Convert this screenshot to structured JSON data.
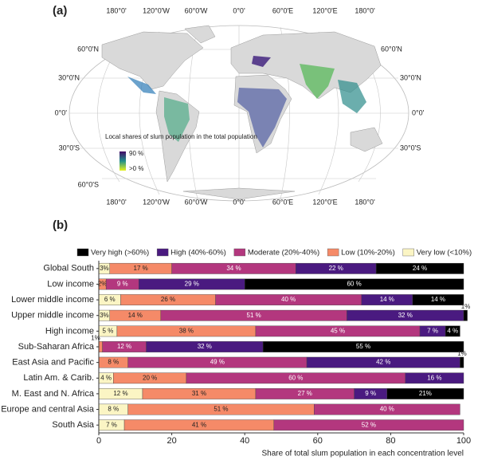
{
  "map": {
    "panel_label": "(a)",
    "top_labels": [
      "180°0'",
      "120°0'W",
      "60°0'W",
      "0°0'",
      "60°0'E",
      "120°0'E",
      "180°0'"
    ],
    "bottom_labels": [
      "180°0'",
      "120°0'W",
      "60°0'W",
      "0°0'",
      "60°0'E",
      "120°0'E",
      "180°0'"
    ],
    "left_labels": [
      "60°0'N",
      "30°0'N",
      "0°0'",
      "30°0'S",
      "60°0'S"
    ],
    "right_labels": [
      "60°0'N",
      "30°0'N",
      "0°0'",
      "30°0'S"
    ],
    "legend_title": "Local shares of slum population in the total population",
    "legend_max": "90 %",
    "legend_min": ">0 %"
  },
  "chart_data": {
    "type": "bar",
    "orientation": "horizontal",
    "stacked": true,
    "panel_label": "(b)",
    "x_label": "Share of total slum population in each concentration level",
    "categories": [
      "Global South",
      "Low income",
      "Lower middle income",
      "Upper middle income",
      "High income",
      "Sub-Saharan Africa",
      "East Asia and Pacific",
      "Latin Am. & Carib.",
      "M. East and N. Africa",
      "Europe and central Asia",
      "South Asia"
    ],
    "series": [
      {
        "name": "Very low (<10%)",
        "color": "#fbf5c4",
        "values": [
          3,
          0,
          6,
          3,
          5,
          0,
          0,
          4,
          12,
          8,
          7
        ],
        "value_labels": [
          "3%",
          null,
          "6 %",
          "3%",
          "5 %",
          null,
          null,
          "4 %",
          "12 %",
          "8 %",
          "7 %"
        ]
      },
      {
        "name": "Low (10%-20%)",
        "color": "#f58a68",
        "values": [
          17,
          2,
          26,
          14,
          38,
          1,
          8,
          20,
          31,
          51,
          41
        ],
        "value_labels": [
          "17 %",
          "2%",
          "26 %",
          "14 %",
          "38 %",
          "1%",
          "8 %",
          "20 %",
          "31 %",
          "51 %",
          "41 %"
        ]
      },
      {
        "name": "Moderate (20%-40%)",
        "color": "#b3377e",
        "values": [
          34,
          9,
          40,
          51,
          45,
          12,
          49,
          60,
          27,
          40,
          52
        ],
        "value_labels": [
          "34 %",
          "9 %",
          "40 %",
          "51 %",
          "45 %",
          "12 %",
          "49 %",
          "60 %",
          "27 %",
          "40 %",
          "52 %"
        ]
      },
      {
        "name": "High (40%-60%)",
        "color": "#4a1a80",
        "values": [
          22,
          29,
          14,
          32,
          7,
          32,
          42,
          16,
          9,
          0,
          0
        ],
        "value_labels": [
          "22 %",
          "29 %",
          "14 %",
          "32 %",
          "7 %",
          "32 %",
          "42 %",
          "16 %",
          "9 %",
          null,
          null
        ]
      },
      {
        "name": "Very high (>60%)",
        "color": "#000000",
        "values": [
          24,
          60,
          14,
          1,
          4,
          55,
          1,
          0,
          21,
          0,
          0
        ],
        "value_labels": [
          "24 %",
          "60 %",
          "14 %",
          "1%",
          "4 %",
          "55 %",
          "1%",
          null,
          "21%",
          null,
          null
        ]
      }
    ],
    "legend_order": [
      4,
      3,
      2,
      1,
      0
    ],
    "xlim": [
      0,
      100
    ],
    "xticks": [
      0,
      20,
      40,
      60,
      80,
      100
    ]
  }
}
